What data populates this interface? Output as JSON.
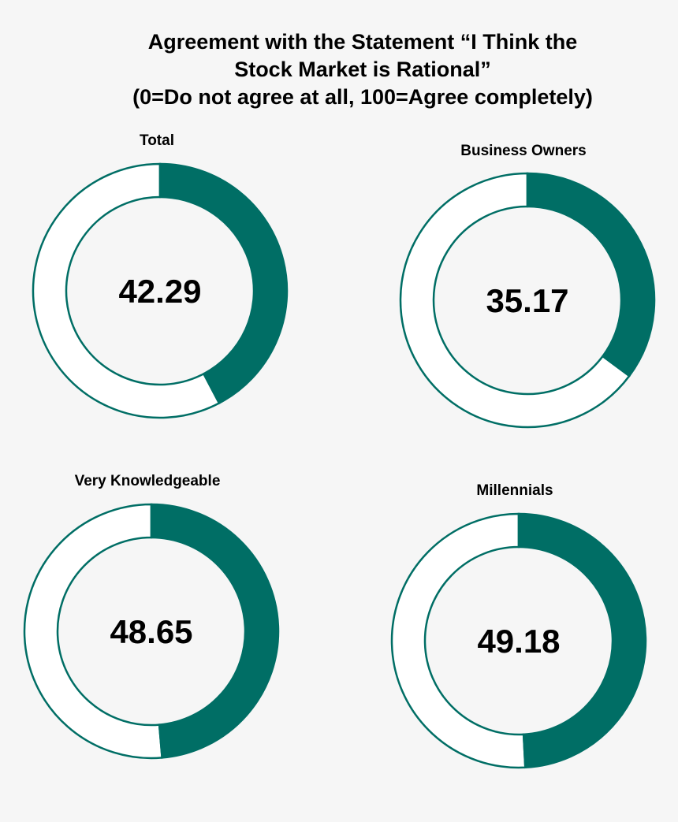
{
  "chart_data": {
    "type": "donut",
    "title": [
      "Agreement with the Statement “I Think the",
      "Stock Market is Rational”",
      "(0=Do not agree at all, 100=Agree completely)"
    ],
    "scale": [
      0,
      100
    ],
    "colors": {
      "filled": "#006e65",
      "remainder": "#ffffff",
      "outline": "#006e65",
      "background": "#f6f6f6",
      "text": "#000000"
    },
    "charts": [
      {
        "label": "Total",
        "value": 42.29,
        "display": "42.29"
      },
      {
        "label": "Business Owners",
        "value": 35.17,
        "display": "35.17"
      },
      {
        "label": "Very Knowledgeable",
        "value": 48.65,
        "display": "48.65"
      },
      {
        "label": "Millennials",
        "value": 49.18,
        "display": "49.18"
      }
    ]
  }
}
